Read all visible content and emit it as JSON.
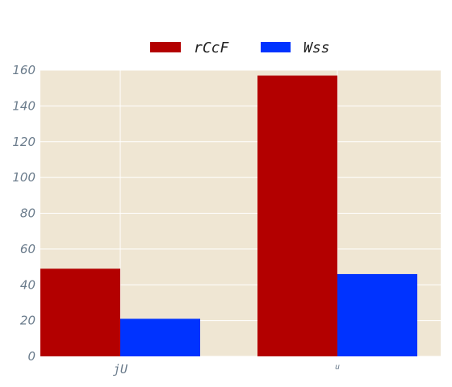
{
  "chart_data": {
    "type": "bar",
    "title": "",
    "xlabel": "",
    "ylabel": "",
    "categories": [
      "jU",
      "u"
    ],
    "series": [
      {
        "name": "rCcF",
        "color": "#b30000",
        "values": [
          49,
          157
        ]
      },
      {
        "name": "Wss",
        "color": "#0033ff",
        "values": [
          21,
          46
        ]
      }
    ],
    "ylim": [
      0,
      160
    ],
    "yticks": [
      0,
      20,
      40,
      60,
      80,
      100,
      120,
      140,
      160
    ],
    "grid": true,
    "legend_position": "top-center",
    "plot_background": "#efe6d3"
  }
}
